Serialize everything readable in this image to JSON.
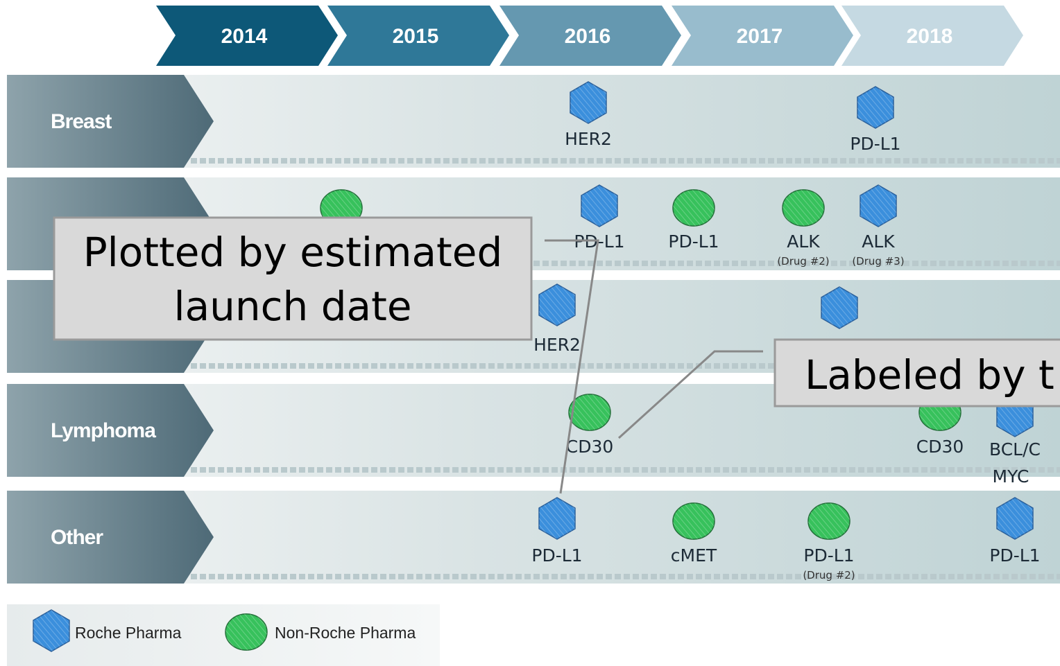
{
  "header": {
    "years": [
      "2014",
      "2015",
      "2016",
      "2017",
      "2018"
    ]
  },
  "rows": [
    {
      "label": "Breast",
      "items": [
        {
          "kind": "roche",
          "label": "HER2"
        },
        {
          "kind": "roche",
          "label": "PD-L1"
        }
      ]
    },
    {
      "items": [
        {
          "kind": "non-roche"
        },
        {
          "kind": "roche",
          "label": "PD-L1"
        },
        {
          "kind": "non-roche",
          "label": "PD-L1"
        },
        {
          "kind": "non-roche",
          "label": "ALK",
          "sub": "(Drug #2)"
        },
        {
          "kind": "roche",
          "label": "ALK",
          "sub": "(Drug #3)"
        }
      ]
    },
    {
      "items": [
        {
          "kind": "roche",
          "label": "HER2"
        },
        {
          "kind": "roche"
        }
      ]
    },
    {
      "label": "Lymphoma",
      "items": [
        {
          "kind": "non-roche",
          "label": "CD30"
        },
        {
          "kind": "non-roche",
          "label": "CD30"
        },
        {
          "kind": "roche",
          "label": "BCL/C",
          "label2": "MYC"
        }
      ]
    },
    {
      "label": "Other",
      "items": [
        {
          "kind": "roche",
          "label": "PD-L1"
        },
        {
          "kind": "non-roche",
          "label": "cMET"
        },
        {
          "kind": "non-roche",
          "label": "PD-L1",
          "sub": "(Drug #2)"
        },
        {
          "kind": "roche",
          "label": "PD-L1"
        }
      ]
    }
  ],
  "legend": {
    "roche": "Roche Pharma",
    "non_roche": "Non-Roche Pharma"
  },
  "callouts": [
    {
      "lines": [
        "Plotted by estimated",
        "launch date"
      ]
    },
    {
      "lines": [
        "Labeled by t"
      ]
    }
  ]
}
